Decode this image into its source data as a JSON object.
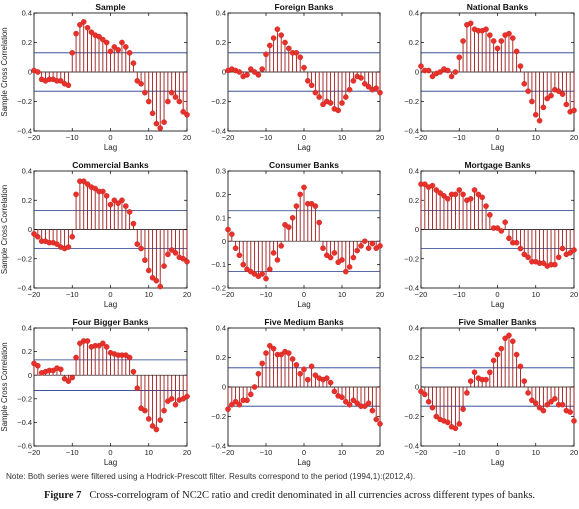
{
  "note": "Note: Both series were filtered using a Hodrick-Prescott filter. Results correspond to the period (1994,1):(2012,4).",
  "caption": {
    "label": "Figure 7",
    "text": "Cross-correlogram of NC2C ratio and credit denominated in all currencies across different types of banks."
  },
  "colors": {
    "marker": "#e8312b",
    "stem": "#a01818",
    "band": "#1f3a8a",
    "axis": "#000000"
  },
  "chart_data": [
    {
      "type": "stem",
      "title": "Sample",
      "xlabel": "Lag",
      "ylabel": "Sample Cross Correlation",
      "xlim": [
        -20,
        20
      ],
      "ylim": [
        -0.4,
        0.4
      ],
      "yticks": [
        -0.4,
        -0.2,
        0,
        0.2,
        0.4
      ],
      "xticks": [
        -20,
        -10,
        0,
        10,
        20
      ],
      "band": 0.13,
      "x": [
        -20,
        -19,
        -18,
        -17,
        -16,
        -15,
        -14,
        -13,
        -12,
        -11,
        -10,
        -9,
        -8,
        -7,
        -6,
        -5,
        -4,
        -3,
        -2,
        -1,
        0,
        1,
        2,
        3,
        4,
        5,
        6,
        7,
        8,
        9,
        10,
        11,
        12,
        13,
        14,
        15,
        16,
        17,
        18,
        19,
        20
      ],
      "y": [
        0.01,
        0.0,
        -0.05,
        -0.06,
        -0.05,
        -0.05,
        -0.06,
        -0.06,
        -0.08,
        -0.09,
        0.13,
        0.26,
        0.32,
        0.34,
        0.3,
        0.27,
        0.25,
        0.24,
        0.22,
        0.2,
        0.14,
        0.17,
        0.15,
        0.2,
        0.17,
        0.13,
        0.06,
        -0.06,
        -0.08,
        -0.14,
        -0.2,
        -0.28,
        -0.35,
        -0.38,
        -0.34,
        -0.2,
        -0.14,
        -0.17,
        -0.2,
        -0.27,
        -0.29
      ]
    },
    {
      "type": "stem",
      "title": "Foreign Banks",
      "xlabel": "Lag",
      "ylabel": "",
      "xlim": [
        -20,
        20
      ],
      "ylim": [
        -0.4,
        0.4
      ],
      "yticks": [
        -0.4,
        -0.2,
        0,
        0.2,
        0.4
      ],
      "xticks": [
        -20,
        -10,
        0,
        10,
        20
      ],
      "band": 0.13,
      "x": [
        -20,
        -19,
        -18,
        -17,
        -16,
        -15,
        -14,
        -13,
        -12,
        -11,
        -10,
        -9,
        -8,
        -7,
        -6,
        -5,
        -4,
        -3,
        -2,
        -1,
        0,
        1,
        2,
        3,
        4,
        5,
        6,
        7,
        8,
        9,
        10,
        11,
        12,
        13,
        14,
        15,
        16,
        17,
        18,
        19,
        20
      ],
      "y": [
        0.01,
        0.02,
        0.01,
        0.0,
        -0.03,
        -0.02,
        0.02,
        0.0,
        -0.02,
        0.02,
        0.12,
        0.18,
        0.23,
        0.29,
        0.25,
        0.2,
        0.16,
        0.13,
        0.13,
        0.1,
        0.03,
        -0.06,
        -0.09,
        -0.14,
        -0.17,
        -0.22,
        -0.2,
        -0.21,
        -0.25,
        -0.26,
        -0.21,
        -0.17,
        -0.12,
        -0.06,
        -0.03,
        -0.04,
        -0.08,
        -0.1,
        -0.12,
        -0.11,
        -0.14
      ]
    },
    {
      "type": "stem",
      "title": "National Banks",
      "xlabel": "Lag",
      "ylabel": "",
      "xlim": [
        -20,
        20
      ],
      "ylim": [
        -0.4,
        0.4
      ],
      "yticks": [
        -0.4,
        -0.2,
        0,
        0.2,
        0.4
      ],
      "xticks": [
        -20,
        -10,
        0,
        10,
        20
      ],
      "band": 0.13,
      "x": [
        -20,
        -19,
        -18,
        -17,
        -16,
        -15,
        -14,
        -13,
        -12,
        -11,
        -10,
        -9,
        -8,
        -7,
        -6,
        -5,
        -4,
        -3,
        -2,
        -1,
        0,
        1,
        2,
        3,
        4,
        5,
        6,
        7,
        8,
        9,
        10,
        11,
        12,
        13,
        14,
        15,
        16,
        17,
        18,
        19,
        20
      ],
      "y": [
        0.04,
        0.01,
        0.01,
        -0.03,
        -0.01,
        0.0,
        0.02,
        0.01,
        -0.03,
        0.0,
        0.1,
        0.21,
        0.32,
        0.33,
        0.29,
        0.28,
        0.28,
        0.29,
        0.25,
        0.21,
        0.16,
        0.21,
        0.25,
        0.26,
        0.23,
        0.14,
        0.04,
        -0.08,
        -0.13,
        -0.2,
        -0.29,
        -0.33,
        -0.24,
        -0.18,
        -0.16,
        -0.12,
        -0.13,
        -0.15,
        -0.22,
        -0.27,
        -0.26
      ]
    },
    {
      "type": "stem",
      "title": "Commercial Banks",
      "xlabel": "Lag",
      "ylabel": "Sample Cross Correlation",
      "xlim": [
        -20,
        20
      ],
      "ylim": [
        -0.4,
        0.4
      ],
      "yticks": [
        -0.4,
        -0.2,
        0,
        0.2,
        0.4
      ],
      "xticks": [
        -20,
        -10,
        0,
        10,
        20
      ],
      "band": 0.13,
      "x": [
        -20,
        -19,
        -18,
        -17,
        -16,
        -15,
        -14,
        -13,
        -12,
        -11,
        -10,
        -9,
        -8,
        -7,
        -6,
        -5,
        -4,
        -3,
        -2,
        -1,
        0,
        1,
        2,
        3,
        4,
        5,
        6,
        7,
        8,
        9,
        10,
        11,
        12,
        13,
        14,
        15,
        16,
        17,
        18,
        19,
        20
      ],
      "y": [
        -0.03,
        -0.05,
        -0.08,
        -0.08,
        -0.09,
        -0.09,
        -0.1,
        -0.12,
        -0.13,
        -0.12,
        -0.05,
        0.24,
        0.33,
        0.33,
        0.31,
        0.29,
        0.28,
        0.26,
        0.26,
        0.23,
        0.17,
        0.2,
        0.18,
        0.2,
        0.16,
        0.12,
        0.04,
        -0.1,
        -0.13,
        -0.21,
        -0.28,
        -0.33,
        -0.35,
        -0.39,
        -0.25,
        -0.17,
        -0.14,
        -0.16,
        -0.19,
        -0.2,
        -0.22
      ]
    },
    {
      "type": "stem",
      "title": "Consumer Banks",
      "xlabel": "Lag",
      "ylabel": "",
      "xlim": [
        -20,
        20
      ],
      "ylim": [
        -0.2,
        0.3
      ],
      "yticks": [
        -0.2,
        -0.1,
        0,
        0.1,
        0.2,
        0.3
      ],
      "xticks": [
        -20,
        -10,
        0,
        10,
        20
      ],
      "band": 0.13,
      "x": [
        -20,
        -19,
        -18,
        -17,
        -16,
        -15,
        -14,
        -13,
        -12,
        -11,
        -10,
        -9,
        -8,
        -7,
        -6,
        -5,
        -4,
        -3,
        -2,
        -1,
        0,
        1,
        2,
        3,
        4,
        5,
        6,
        7,
        8,
        9,
        10,
        11,
        12,
        13,
        14,
        15,
        16,
        17,
        18,
        19,
        20
      ],
      "y": [
        0.05,
        0.03,
        -0.03,
        -0.06,
        -0.1,
        -0.12,
        -0.13,
        -0.14,
        -0.15,
        -0.14,
        -0.16,
        -0.12,
        -0.05,
        -0.08,
        -0.02,
        0.07,
        0.06,
        0.1,
        0.15,
        0.2,
        0.23,
        0.16,
        0.16,
        0.15,
        0.08,
        -0.03,
        -0.06,
        -0.07,
        -0.05,
        -0.09,
        -0.08,
        -0.13,
        -0.11,
        -0.07,
        -0.04,
        -0.02,
        0.0,
        -0.03,
        -0.01,
        -0.03,
        -0.02
      ]
    },
    {
      "type": "stem",
      "title": "Mortgage Banks",
      "xlabel": "Lag",
      "ylabel": "",
      "xlim": [
        -20,
        20
      ],
      "ylim": [
        -0.4,
        0.4
      ],
      "yticks": [
        -0.4,
        -0.2,
        0,
        0.2,
        0.4
      ],
      "xticks": [
        -20,
        -10,
        0,
        10,
        20
      ],
      "band": 0.13,
      "x": [
        -20,
        -19,
        -18,
        -17,
        -16,
        -15,
        -14,
        -13,
        -12,
        -11,
        -10,
        -9,
        -8,
        -7,
        -6,
        -5,
        -4,
        -3,
        -2,
        -1,
        0,
        1,
        2,
        3,
        4,
        5,
        6,
        7,
        8,
        9,
        10,
        11,
        12,
        13,
        14,
        15,
        16,
        17,
        18,
        19,
        20
      ],
      "y": [
        0.31,
        0.31,
        0.29,
        0.3,
        0.27,
        0.25,
        0.23,
        0.21,
        0.24,
        0.24,
        0.27,
        0.24,
        0.2,
        0.21,
        0.27,
        0.24,
        0.22,
        0.16,
        0.1,
        0.01,
        0.01,
        -0.01,
        0.05,
        -0.06,
        -0.09,
        -0.09,
        -0.13,
        -0.17,
        -0.19,
        -0.22,
        -0.22,
        -0.23,
        -0.23,
        -0.25,
        -0.24,
        -0.24,
        -0.19,
        -0.13,
        -0.17,
        -0.16,
        -0.14
      ]
    },
    {
      "type": "stem",
      "title": "Four Bigger Banks",
      "xlabel": "Lag",
      "ylabel": "Sample Cross Correlation",
      "xlim": [
        -20,
        20
      ],
      "ylim": [
        -0.6,
        0.4
      ],
      "yticks": [
        -0.6,
        -0.4,
        -0.2,
        0,
        0.2,
        0.4
      ],
      "xticks": [
        -20,
        -10,
        0,
        10,
        20
      ],
      "band": 0.13,
      "x": [
        -20,
        -19,
        -18,
        -17,
        -16,
        -15,
        -14,
        -13,
        -12,
        -11,
        -10,
        -9,
        -8,
        -7,
        -6,
        -5,
        -4,
        -3,
        -2,
        -1,
        0,
        1,
        2,
        3,
        4,
        5,
        6,
        7,
        8,
        9,
        10,
        11,
        12,
        13,
        14,
        15,
        16,
        17,
        18,
        19,
        20
      ],
      "y": [
        0.1,
        0.08,
        0.02,
        0.03,
        0.04,
        0.04,
        0.06,
        0.05,
        -0.03,
        -0.05,
        -0.02,
        0.15,
        0.27,
        0.29,
        0.29,
        0.24,
        0.25,
        0.25,
        0.27,
        0.24,
        0.19,
        0.18,
        0.17,
        0.17,
        0.17,
        0.15,
        0.03,
        -0.11,
        -0.28,
        -0.3,
        -0.37,
        -0.43,
        -0.46,
        -0.38,
        -0.3,
        -0.22,
        -0.2,
        -0.25,
        -0.21,
        -0.2,
        -0.18
      ]
    },
    {
      "type": "stem",
      "title": "Five Medium Banks",
      "xlabel": "Lag",
      "ylabel": "",
      "xlim": [
        -20,
        20
      ],
      "ylim": [
        -0.4,
        0.4
      ],
      "yticks": [
        -0.4,
        -0.2,
        0,
        0.2,
        0.4
      ],
      "xticks": [
        -20,
        -10,
        0,
        10,
        20
      ],
      "band": 0.13,
      "x": [
        -20,
        -19,
        -18,
        -17,
        -16,
        -15,
        -14,
        -13,
        -12,
        -11,
        -10,
        -9,
        -8,
        -7,
        -6,
        -5,
        -4,
        -3,
        -2,
        -1,
        0,
        1,
        2,
        3,
        4,
        5,
        6,
        7,
        8,
        9,
        10,
        11,
        12,
        13,
        14,
        15,
        16,
        17,
        18,
        19,
        20
      ],
      "y": [
        -0.15,
        -0.12,
        -0.1,
        -0.12,
        -0.09,
        -0.09,
        -0.05,
        0.0,
        0.09,
        0.16,
        0.23,
        0.28,
        0.26,
        0.22,
        0.22,
        0.24,
        0.23,
        0.19,
        0.15,
        0.09,
        0.12,
        0.05,
        0.14,
        0.08,
        0.06,
        0.05,
        0.06,
        0.03,
        -0.03,
        -0.06,
        -0.07,
        -0.1,
        -0.12,
        -0.09,
        -0.11,
        -0.13,
        -0.13,
        -0.11,
        -0.16,
        -0.22,
        -0.25
      ]
    },
    {
      "type": "stem",
      "title": "Five Smaller Banks",
      "xlabel": "Lag",
      "ylabel": "",
      "xlim": [
        -20,
        20
      ],
      "ylim": [
        -0.4,
        0.4
      ],
      "yticks": [
        -0.4,
        -0.2,
        0,
        0.2,
        0.4
      ],
      "xticks": [
        -20,
        -10,
        0,
        10,
        20
      ],
      "band": 0.13,
      "x": [
        -20,
        -19,
        -18,
        -17,
        -16,
        -15,
        -14,
        -13,
        -12,
        -11,
        -10,
        -9,
        -8,
        -7,
        -6,
        -5,
        -4,
        -3,
        -2,
        -1,
        0,
        1,
        2,
        3,
        4,
        5,
        6,
        7,
        8,
        9,
        10,
        11,
        12,
        13,
        14,
        15,
        16,
        17,
        18,
        19,
        20
      ],
      "y": [
        -0.03,
        -0.05,
        -0.1,
        -0.14,
        -0.2,
        -0.22,
        -0.23,
        -0.24,
        -0.27,
        -0.28,
        -0.25,
        -0.15,
        -0.04,
        0.04,
        0.1,
        0.06,
        0.05,
        0.05,
        0.1,
        0.18,
        0.22,
        0.26,
        0.33,
        0.35,
        0.31,
        0.22,
        0.14,
        0.04,
        -0.04,
        -0.09,
        -0.11,
        -0.14,
        -0.16,
        -0.12,
        -0.1,
        -0.08,
        -0.12,
        -0.12,
        -0.16,
        -0.17,
        -0.23
      ]
    }
  ]
}
